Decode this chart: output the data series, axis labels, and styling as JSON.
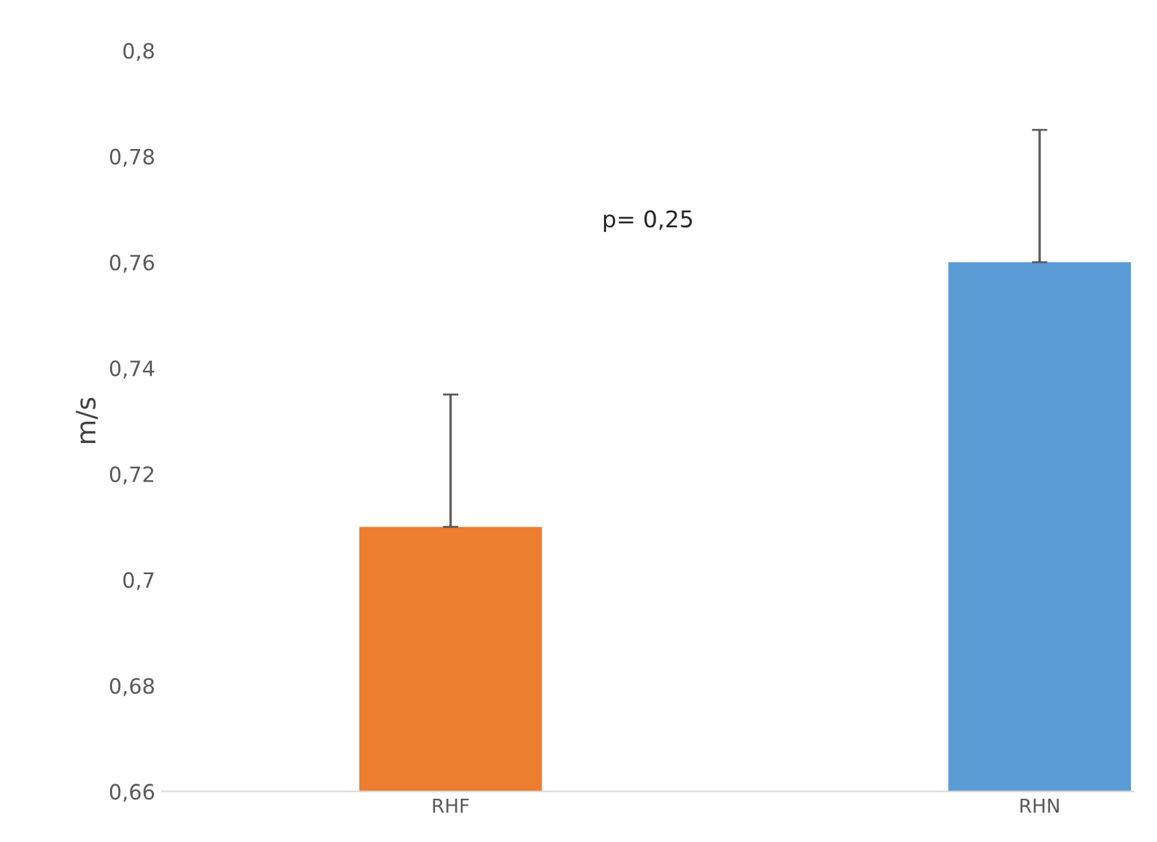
{
  "chart_data": {
    "type": "bar",
    "ylabel": "m/s",
    "categories": [
      "RHF",
      "RHN"
    ],
    "values": [
      0.71,
      0.76
    ],
    "colors": [
      "#ed7d31",
      "#5b9bd5"
    ],
    "errors": [
      [
        0.71,
        0.735
      ],
      [
        0.76,
        0.785
      ]
    ],
    "ylim": [
      0.66,
      0.8
    ],
    "yticks": [
      {
        "value": 0.66,
        "label": "0,66"
      },
      {
        "value": 0.68,
        "label": "0,68"
      },
      {
        "value": 0.7,
        "label": "0,7"
      },
      {
        "value": 0.72,
        "label": "0,72"
      },
      {
        "value": 0.74,
        "label": "0,74"
      },
      {
        "value": 0.76,
        "label": "0,76"
      },
      {
        "value": 0.78,
        "label": "0,78"
      },
      {
        "value": 0.8,
        "label": "0,8"
      }
    ],
    "annotations": [
      "p= 0,25"
    ],
    "grid": false,
    "legend": false
  }
}
